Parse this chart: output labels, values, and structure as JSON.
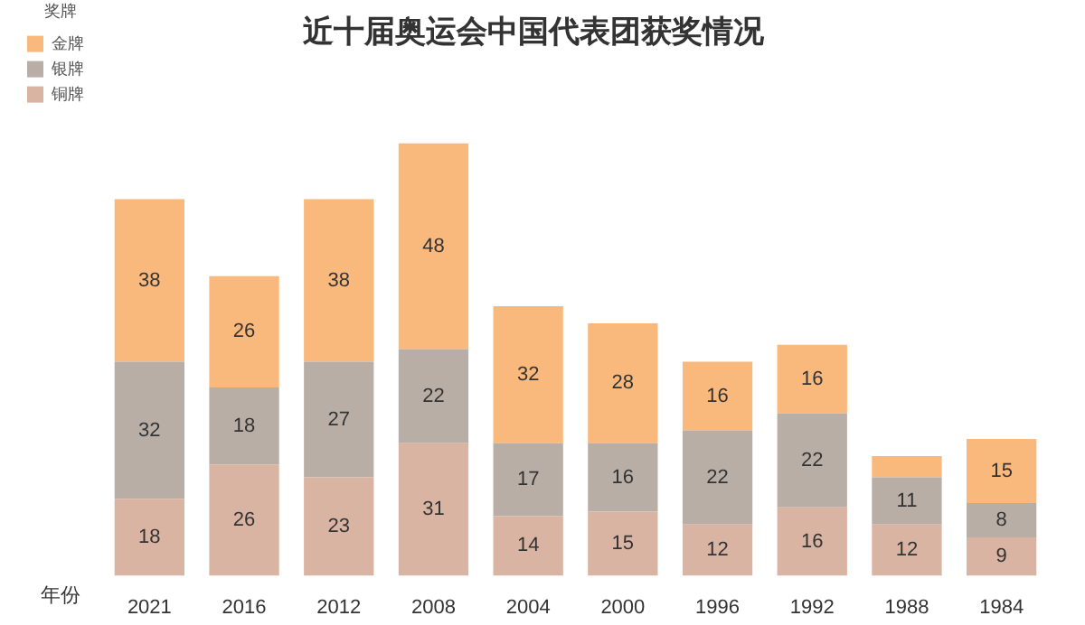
{
  "chart_data": {
    "type": "bar",
    "title": "近十届奥运会中国代表团获奖情况",
    "xlabel": "年份",
    "legend_title": "奖牌",
    "stacked": true,
    "legend": "top left",
    "categories": [
      "2021",
      "2016",
      "2012",
      "2008",
      "2004",
      "2000",
      "1996",
      "1992",
      "1988",
      "1984"
    ],
    "series": [
      {
        "name": "铜牌",
        "color": "#d9b4a2",
        "values": [
          18,
          26,
          23,
          31,
          14,
          15,
          12,
          16,
          12,
          9
        ],
        "value_labels": [
          "18",
          "26",
          "23",
          "31",
          "14",
          "15",
          "12",
          "16",
          "12",
          "9"
        ]
      },
      {
        "name": "银牌",
        "color": "#b8aea6",
        "values": [
          32,
          18,
          27,
          22,
          17,
          16,
          22,
          22,
          11,
          8
        ],
        "value_labels": [
          "32",
          "18",
          "27",
          "22",
          "17",
          "16",
          "22",
          "22",
          "11",
          "8"
        ]
      },
      {
        "name": "金牌",
        "color": "#f9b87c",
        "values": [
          38,
          26,
          38,
          48,
          32,
          28,
          16,
          16,
          5,
          15
        ],
        "value_labels": [
          "38",
          "26",
          "38",
          "48",
          "32",
          "28",
          "16",
          "16",
          null,
          "15"
        ]
      }
    ]
  }
}
